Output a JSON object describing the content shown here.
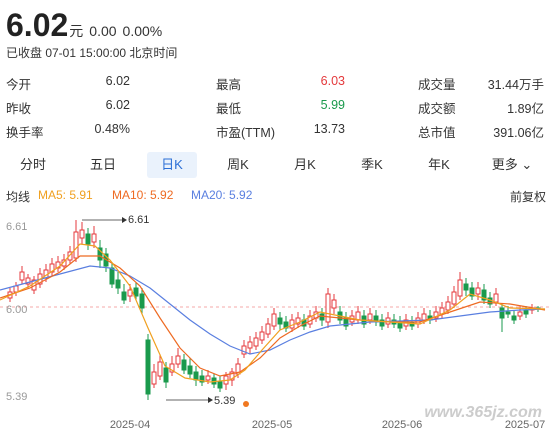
{
  "quote": {
    "price": "6.02",
    "unit": "元",
    "change": "0.00",
    "change_pct": "0.00%",
    "status": "已收盘 07-01 15:00:00 北京时间"
  },
  "stats": [
    [
      {
        "label": "今开",
        "value": "6.02",
        "color": "#333333"
      },
      {
        "label": "最高",
        "value": "6.03",
        "color": "#e4393c"
      },
      {
        "label": "成交量",
        "value": "31.44万手",
        "color": "#333333"
      }
    ],
    [
      {
        "label": "昨收",
        "value": "6.02",
        "color": "#333333"
      },
      {
        "label": "最低",
        "value": "5.99",
        "color": "#1a9a4c"
      },
      {
        "label": "成交额",
        "value": "1.89亿",
        "color": "#333333"
      }
    ],
    [
      {
        "label": "换手率",
        "value": "0.48%",
        "color": "#333333"
      },
      {
        "label": "市盈(TTM)",
        "value": "13.73",
        "color": "#333333"
      },
      {
        "label": "总市值",
        "value": "391.06亿",
        "color": "#333333"
      }
    ]
  ],
  "tabs": [
    "分时",
    "五日",
    "日K",
    "周K",
    "月K",
    "季K",
    "年K",
    "更多"
  ],
  "active_tab": "日K",
  "ma": {
    "label": "均线",
    "ma5": "MA5: 5.91",
    "ma10": "MA10: 5.92",
    "ma20": "MA20: 5.92",
    "adjust": "前复权"
  },
  "chart_data": {
    "type": "candlestick",
    "y_top_label": "6.61",
    "y_mid_label": "6.00",
    "y_bottom_label": "5.39",
    "max_annotation": "6.61",
    "min_annotation": "5.39",
    "x_labels": [
      "2025-04",
      "2025-05",
      "2025-06",
      "2025-07"
    ],
    "colors": {
      "up": "#e4393c",
      "down": "#1a9a4c",
      "ma5": "#f0a020",
      "ma10": "#ee6a22",
      "ma20": "#5a7fe0"
    }
  },
  "watermark": "www.365jz.com"
}
